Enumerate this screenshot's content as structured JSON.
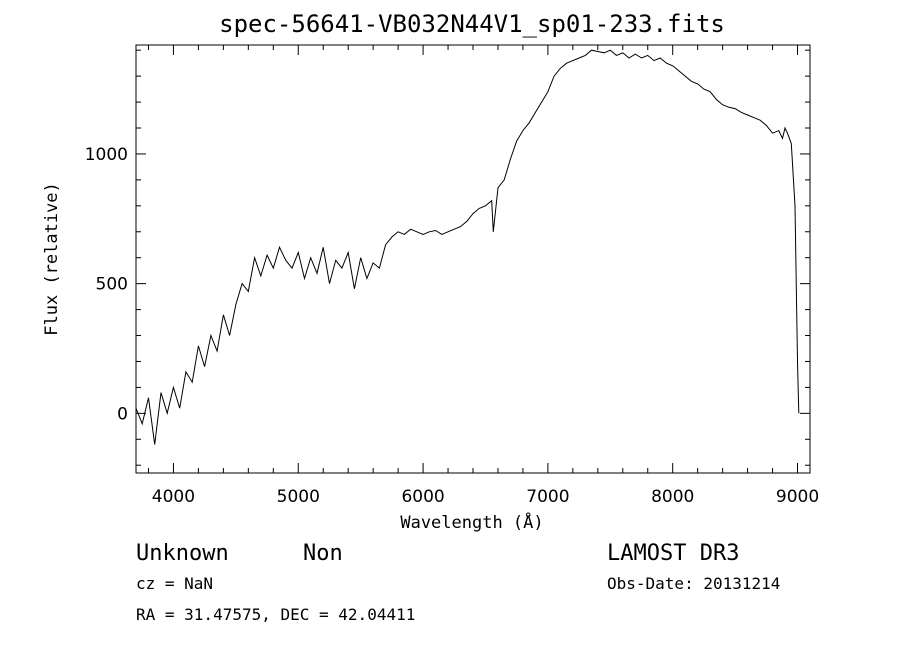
{
  "chart_data": {
    "type": "line",
    "title": "spec-56641-VB032N44V1_sp01-233.fits",
    "xlabel": "Wavelength (Å)",
    "ylabel": "Flux (relative)",
    "xlim": [
      3700,
      9100
    ],
    "ylim": [
      -230,
      1420
    ],
    "xticks": [
      4000,
      5000,
      6000,
      7000,
      8000,
      9000
    ],
    "xtick_labels": [
      "4000",
      "5000",
      "6000",
      "7000",
      "8000",
      "9000"
    ],
    "yticks": [
      0,
      500,
      1000
    ],
    "ytick_labels": [
      "0",
      "500",
      "1000"
    ],
    "series": [
      {
        "name": "flux",
        "x": [
          3700,
          3750,
          3800,
          3850,
          3900,
          3950,
          4000,
          4050,
          4100,
          4150,
          4200,
          4250,
          4300,
          4350,
          4400,
          4450,
          4500,
          4550,
          4600,
          4650,
          4700,
          4750,
          4800,
          4850,
          4900,
          4950,
          5000,
          5050,
          5100,
          5150,
          5200,
          5250,
          5300,
          5350,
          5400,
          5450,
          5500,
          5550,
          5600,
          5650,
          5700,
          5750,
          5800,
          5850,
          5900,
          5950,
          6000,
          6050,
          6100,
          6150,
          6200,
          6250,
          6300,
          6350,
          6400,
          6450,
          6500,
          6550,
          6563,
          6600,
          6650,
          6700,
          6750,
          6800,
          6850,
          6900,
          6950,
          7000,
          7050,
          7100,
          7150,
          7200,
          7250,
          7300,
          7350,
          7400,
          7450,
          7500,
          7550,
          7600,
          7650,
          7700,
          7750,
          7800,
          7850,
          7900,
          7950,
          8000,
          8050,
          8100,
          8150,
          8200,
          8250,
          8300,
          8350,
          8400,
          8450,
          8500,
          8550,
          8600,
          8650,
          8700,
          8750,
          8800,
          8850,
          8880,
          8900,
          8920,
          8950,
          8980,
          9000,
          9010
        ],
        "y": [
          20,
          -40,
          60,
          -120,
          80,
          0,
          100,
          20,
          160,
          120,
          260,
          180,
          300,
          240,
          380,
          300,
          420,
          500,
          470,
          600,
          530,
          610,
          560,
          640,
          590,
          560,
          620,
          520,
          600,
          540,
          640,
          500,
          590,
          560,
          620,
          480,
          600,
          520,
          580,
          560,
          650,
          680,
          700,
          690,
          710,
          700,
          690,
          700,
          705,
          690,
          700,
          710,
          720,
          740,
          770,
          790,
          800,
          820,
          700,
          870,
          900,
          980,
          1050,
          1090,
          1120,
          1160,
          1200,
          1240,
          1300,
          1330,
          1350,
          1360,
          1370,
          1380,
          1400,
          1395,
          1390,
          1400,
          1380,
          1390,
          1370,
          1385,
          1370,
          1380,
          1360,
          1370,
          1350,
          1340,
          1320,
          1300,
          1280,
          1270,
          1250,
          1240,
          1210,
          1190,
          1180,
          1175,
          1160,
          1150,
          1140,
          1130,
          1110,
          1080,
          1090,
          1060,
          1100,
          1080,
          1040,
          800,
          200,
          0
        ]
      }
    ]
  },
  "footer": {
    "object_class": "Unknown",
    "subclass": "Non",
    "survey": "LAMOST DR3",
    "cz": "cz = NaN",
    "obs_date": "Obs-Date: 20131214",
    "coords": "RA =  31.47575, DEC =  42.04411"
  }
}
